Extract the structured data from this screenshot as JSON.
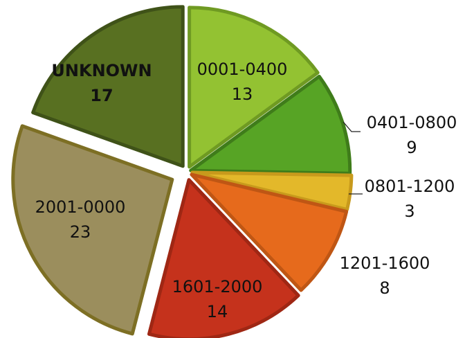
{
  "chart_data": {
    "type": "pie",
    "title": "",
    "categories": [
      "0001-0400",
      "0401-0800",
      "0801-1200",
      "1201-1600",
      "1601-2000",
      "2001-0000",
      "UNKNOWN"
    ],
    "values": [
      13,
      9,
      3,
      8,
      14,
      23,
      17
    ],
    "colors": [
      "#93c232",
      "#57a425",
      "#e3b82a",
      "#e66a1c",
      "#c5321c",
      "#9b8e5d",
      "#587021"
    ],
    "borders": [
      "#6f9a22",
      "#3f7c1a",
      "#c89a1c",
      "#bf5614",
      "#9f2714",
      "#7d6f24",
      "#3f5218"
    ],
    "start_angle_deg_clockwise_from_top": 0,
    "legend": "none",
    "data_labels": "category and value on or beside each slice"
  }
}
